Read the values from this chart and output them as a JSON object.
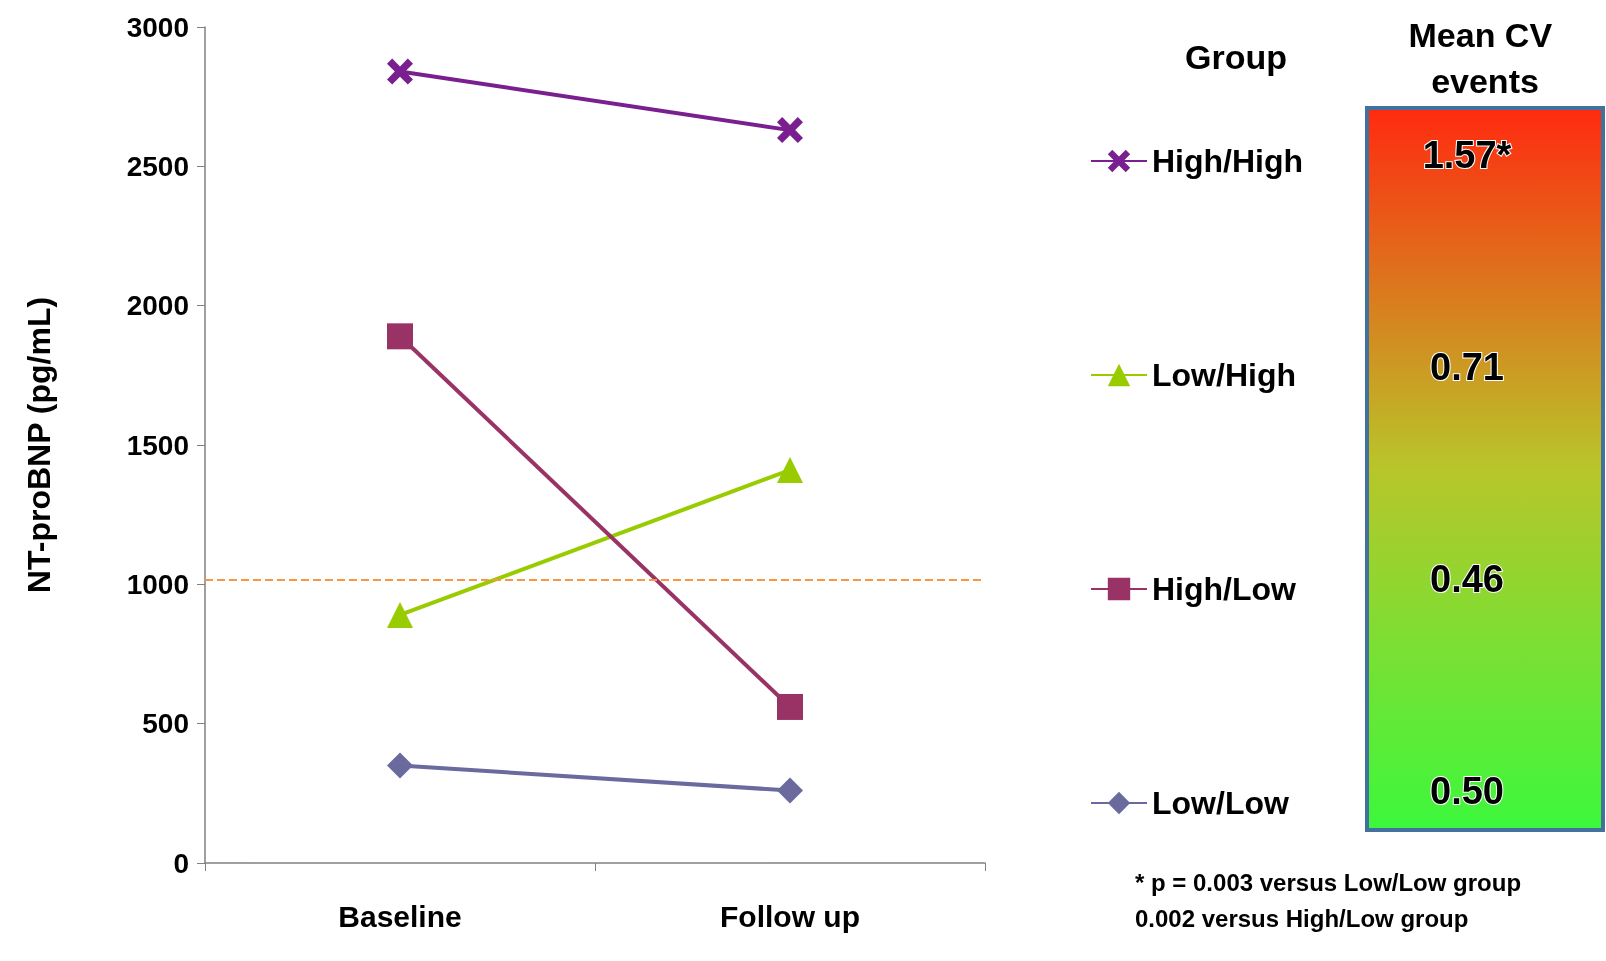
{
  "chart_data": {
    "type": "line",
    "ylabel": "NT-proBNP (pg/mL)",
    "legend_title": "Group",
    "categories": [
      "Baseline",
      "Follow up"
    ],
    "series": [
      {
        "name": "High/High",
        "color": "#7a1f8f",
        "marker": "cross",
        "values": [
          2840,
          2630
        ]
      },
      {
        "name": "Low/High",
        "color": "#99cc00",
        "marker": "triangle",
        "values": [
          890,
          1410
        ]
      },
      {
        "name": "High/Low",
        "color": "#993366",
        "marker": "square",
        "values": [
          1890,
          560
        ]
      },
      {
        "name": "Low/Low",
        "color": "#6a6a9e",
        "marker": "diamond",
        "values": [
          350,
          260
        ]
      }
    ],
    "ylim": [
      0,
      3000
    ],
    "yticks": [
      0,
      500,
      1000,
      1500,
      2000,
      2500,
      3000
    ],
    "grid": false,
    "legend": "right",
    "ref_lines": [
      {
        "axis": "y",
        "value": 1015,
        "color": "#f79646",
        "line_style": "dashed"
      }
    ],
    "annotations": [
      "Mean CV events",
      "1.57*",
      "0.71",
      "0.46",
      "0.50",
      "* p = 0.003 versus Low/Low group",
      "0.002 versus High/Low group"
    ]
  }
}
